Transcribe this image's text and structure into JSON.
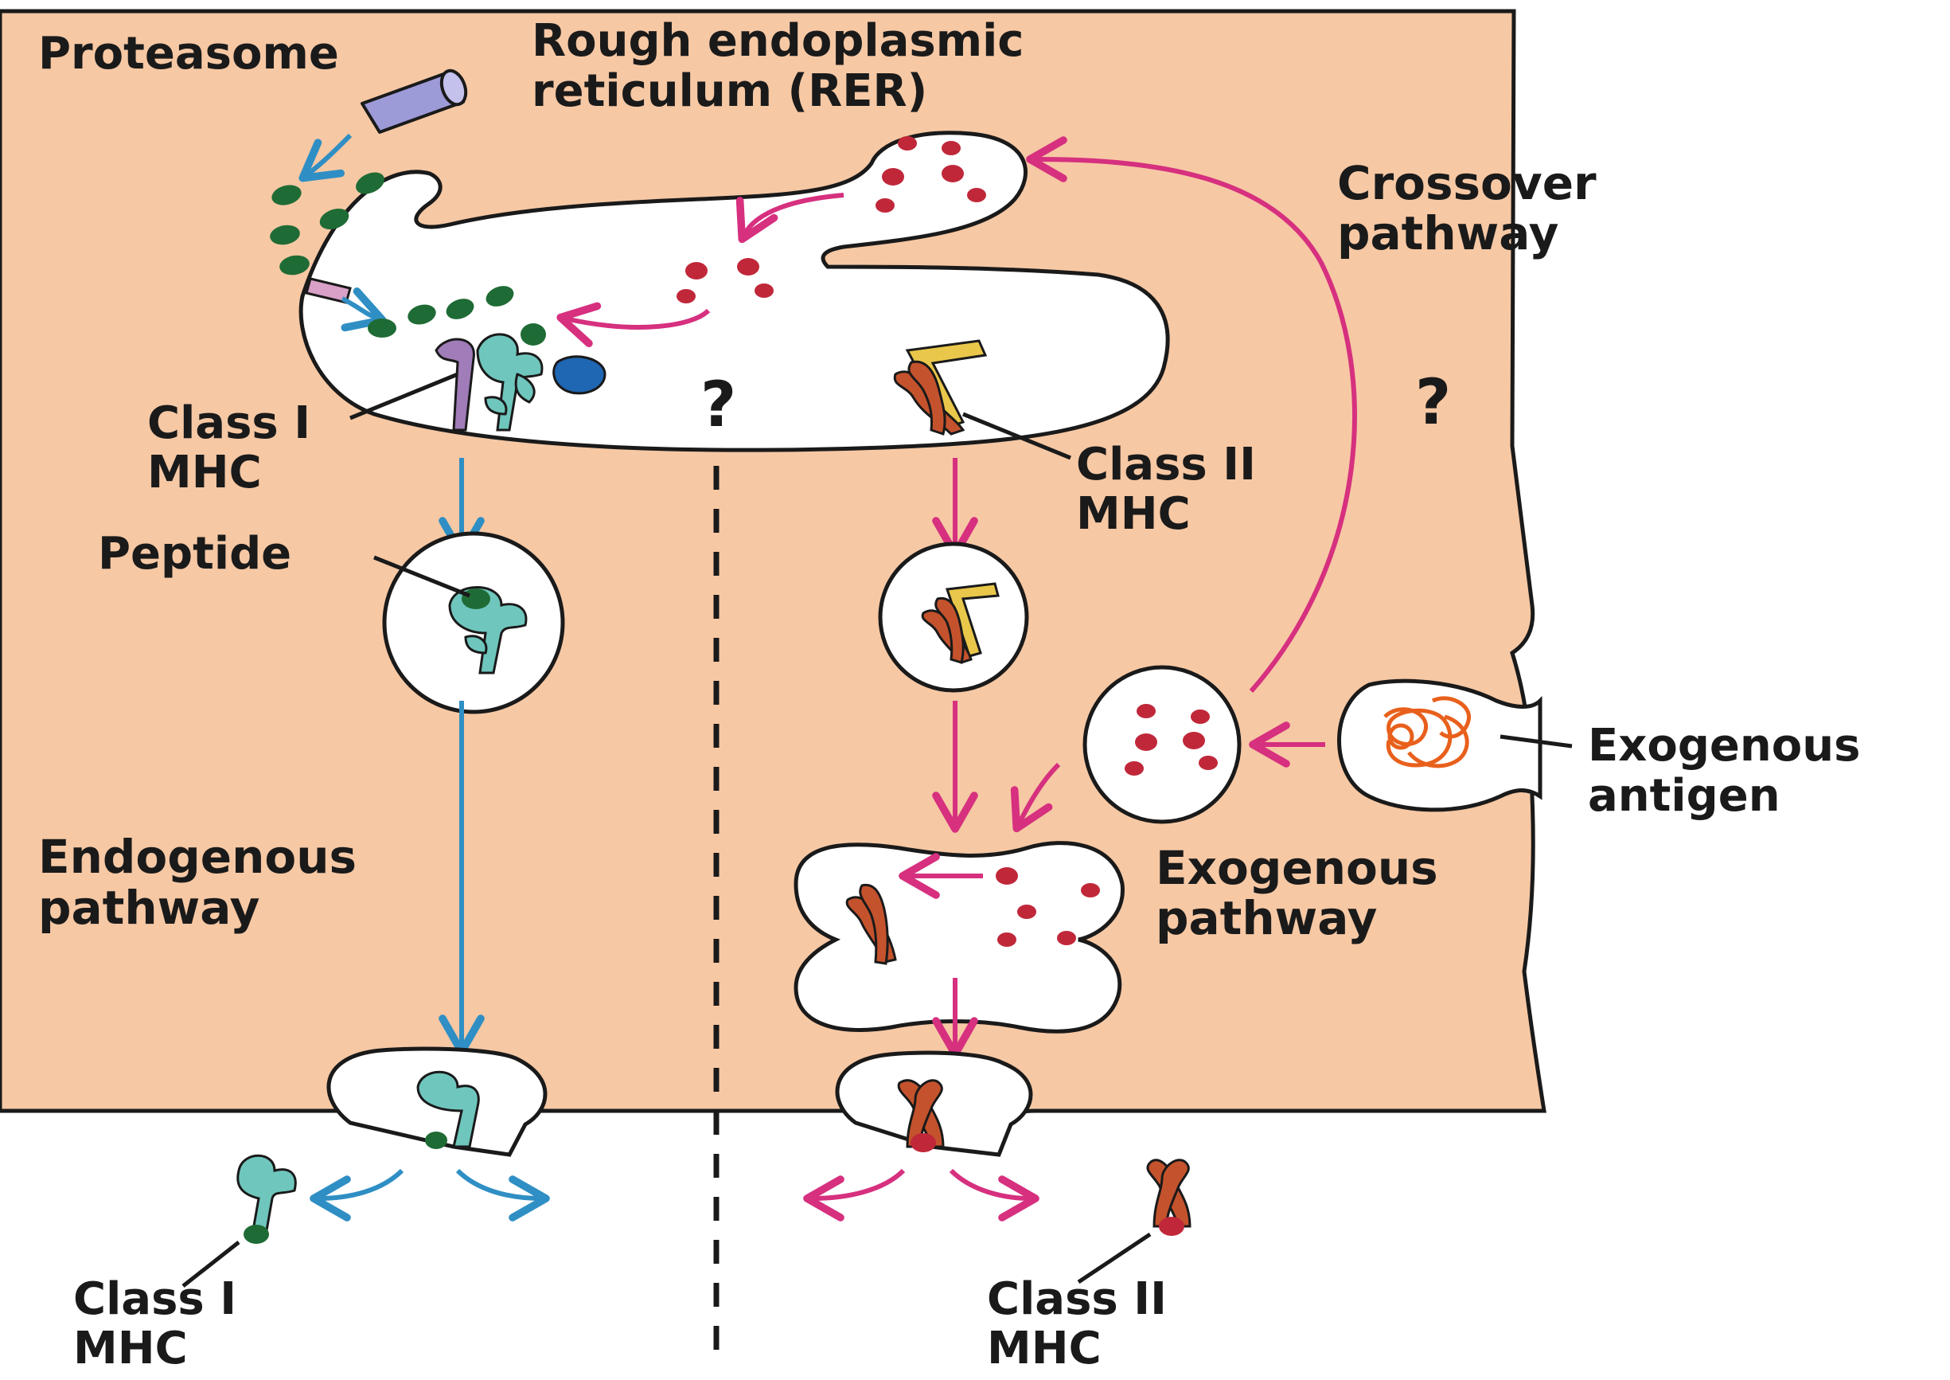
{
  "labels": {
    "proteasome": "Proteasome",
    "rer_line1": "Rough endoplasmic",
    "rer_line2": "reticulum (RER)",
    "crossover_line1": "Crossover",
    "crossover_line2": "pathway",
    "class1_rer_line1": "Class I",
    "class1_rer_line2": "MHC",
    "class2_rer_line1": "Class II",
    "class2_rer_line2": "MHC",
    "peptide": "Peptide",
    "exogenous_antigen_line1": "Exogenous",
    "exogenous_antigen_line2": "antigen",
    "endogenous_line1": "Endogenous",
    "endogenous_line2": "pathway",
    "exogenous_path_line1": "Exogenous",
    "exogenous_path_line2": "pathway",
    "class1_surface_line1": "Class I",
    "class1_surface_line2": "MHC",
    "class2_surface_line1": "Class II",
    "class2_surface_line2": "MHC",
    "question_mark": "?"
  },
  "colors": {
    "cytoplasm": "#f6c8a4",
    "outline": "#1a1a1a",
    "endogenous_arrow": "#2f8fc4",
    "exogenous_arrow": "#d6307f",
    "peptide_green": "#1f6b35",
    "antigen_red": "#c0283a",
    "class1_teal": "#6fc6bd",
    "class2_rust": "#c4532d",
    "invariant_yellow": "#e9c74a",
    "proteasome_purple": "#9d9ad8",
    "tap_blue": "#1f66b3",
    "tap_purple": "#a07cb8"
  }
}
